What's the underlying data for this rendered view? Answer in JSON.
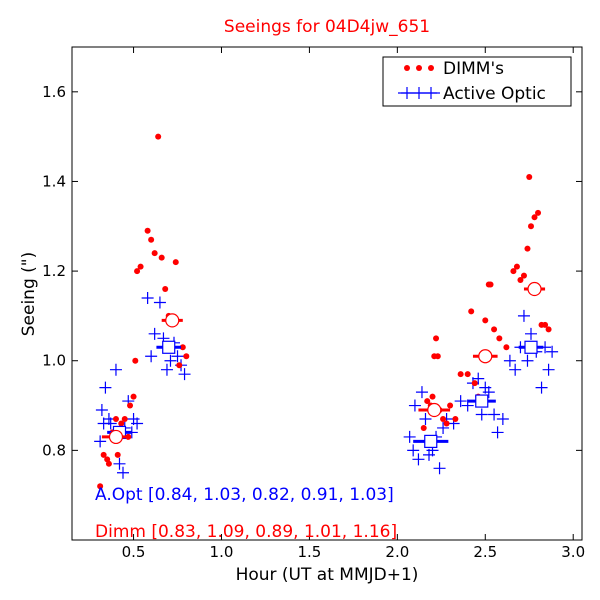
{
  "chart_data": {
    "type": "scatter",
    "title": "Seeings for 04D4jw_651",
    "xlabel": "Hour (UT at MMJD+1)",
    "ylabel": "Seeing (\")",
    "xlim": [
      0.15,
      3.05
    ],
    "ylim": [
      0.6,
      1.7
    ],
    "xticks": [
      0.5,
      1.0,
      1.5,
      2.0,
      2.5,
      3.0
    ],
    "xtick_labels": [
      "0.5",
      "1.0",
      "1.5",
      "2.0",
      "2.5",
      "3.0"
    ],
    "yticks": [
      0.8,
      1.0,
      1.2,
      1.4,
      1.6
    ],
    "ytick_labels": [
      "0.8",
      "1.0",
      "1.2",
      "1.4",
      "1.6"
    ],
    "legend_position": "top-right",
    "colors": {
      "dimm": "#ff0000",
      "aopt": "#0000ff",
      "title": "#ff0000"
    },
    "series": [
      {
        "name": "DIMM's",
        "marker": "dot",
        "color": "#ff0000",
        "x": [
          0.31,
          0.33,
          0.35,
          0.36,
          0.38,
          0.4,
          0.41,
          0.43,
          0.45,
          0.47,
          0.48,
          0.5,
          0.51,
          0.52,
          0.54,
          0.58,
          0.6,
          0.62,
          0.64,
          0.66,
          0.68,
          0.7,
          0.72,
          0.74,
          0.76,
          0.78,
          0.8,
          2.15,
          2.17,
          2.19,
          2.2,
          2.21,
          2.22,
          2.23,
          2.24,
          2.26,
          2.28,
          2.3,
          2.33,
          2.36,
          2.4,
          2.42,
          2.44,
          2.46,
          2.48,
          2.5,
          2.52,
          2.53,
          2.55,
          2.58,
          2.62,
          2.66,
          2.68,
          2.7,
          2.72,
          2.74,
          2.75,
          2.76,
          2.78,
          2.8,
          2.82,
          2.84,
          2.86
        ],
        "y": [
          0.72,
          0.79,
          0.78,
          0.77,
          0.84,
          0.87,
          0.79,
          0.86,
          0.87,
          0.83,
          0.9,
          0.92,
          1.0,
          1.2,
          1.21,
          1.29,
          1.27,
          1.24,
          1.5,
          1.23,
          1.16,
          1.1,
          1.09,
          1.22,
          0.99,
          1.03,
          1.01,
          0.85,
          0.91,
          0.9,
          0.92,
          1.01,
          1.05,
          1.01,
          0.89,
          0.87,
          0.86,
          0.9,
          0.87,
          0.97,
          0.97,
          1.11,
          0.95,
          0.92,
          1.01,
          1.09,
          1.17,
          1.17,
          1.07,
          1.05,
          1.03,
          1.2,
          1.21,
          1.18,
          1.19,
          1.25,
          1.41,
          1.3,
          1.32,
          1.33,
          1.08,
          1.08,
          1.07
        ]
      },
      {
        "name": "Active Optic",
        "marker": "plus",
        "color": "#0000ff",
        "x": [
          0.31,
          0.32,
          0.33,
          0.34,
          0.36,
          0.37,
          0.39,
          0.4,
          0.42,
          0.44,
          0.45,
          0.47,
          0.49,
          0.5,
          0.52,
          0.58,
          0.6,
          0.62,
          0.65,
          0.67,
          0.69,
          0.71,
          0.73,
          0.75,
          0.77,
          0.79,
          2.07,
          2.09,
          2.1,
          2.12,
          2.14,
          2.16,
          2.18,
          2.2,
          2.22,
          2.24,
          2.26,
          2.28,
          2.32,
          2.36,
          2.4,
          2.43,
          2.46,
          2.48,
          2.5,
          2.52,
          2.55,
          2.57,
          2.6,
          2.64,
          2.67,
          2.7,
          2.72,
          2.74,
          2.76,
          2.79,
          2.82,
          2.84,
          2.86,
          2.88
        ],
        "y": [
          0.82,
          0.89,
          0.86,
          0.94,
          0.87,
          0.86,
          0.84,
          0.98,
          0.77,
          0.75,
          0.85,
          0.91,
          0.84,
          0.87,
          0.86,
          1.14,
          1.01,
          1.06,
          1.13,
          1.05,
          0.98,
          1.0,
          1.04,
          1.01,
          0.99,
          0.97,
          0.83,
          0.8,
          0.9,
          0.78,
          0.93,
          0.87,
          0.79,
          0.8,
          0.83,
          0.76,
          0.85,
          0.87,
          0.86,
          0.91,
          0.9,
          0.95,
          0.96,
          0.88,
          0.94,
          0.93,
          0.88,
          0.84,
          0.87,
          1.0,
          0.98,
          1.03,
          1.1,
          1.0,
          1.06,
          1.02,
          0.94,
          1.03,
          0.98,
          1.02
        ]
      }
    ],
    "summary_markers": {
      "dimm": {
        "x": [
          0.4,
          0.72,
          2.21,
          2.5,
          2.78
        ],
        "y": [
          0.83,
          1.09,
          0.89,
          1.01,
          1.16
        ],
        "halfwidth": [
          0.08,
          0.06,
          0.09,
          0.07,
          0.06
        ]
      },
      "aopt": {
        "x": [
          0.42,
          0.7,
          2.19,
          2.48,
          2.76
        ],
        "y": [
          0.84,
          1.03,
          0.82,
          0.91,
          1.03
        ],
        "halfwidth": [
          0.07,
          0.07,
          0.1,
          0.08,
          0.07
        ]
      }
    },
    "annotations": {
      "aopt": "A.Opt [0.84, 1.03, 0.82, 0.91, 1.03]",
      "dimm": "Dimm [0.83, 1.09, 0.89, 1.01, 1.16]"
    }
  }
}
